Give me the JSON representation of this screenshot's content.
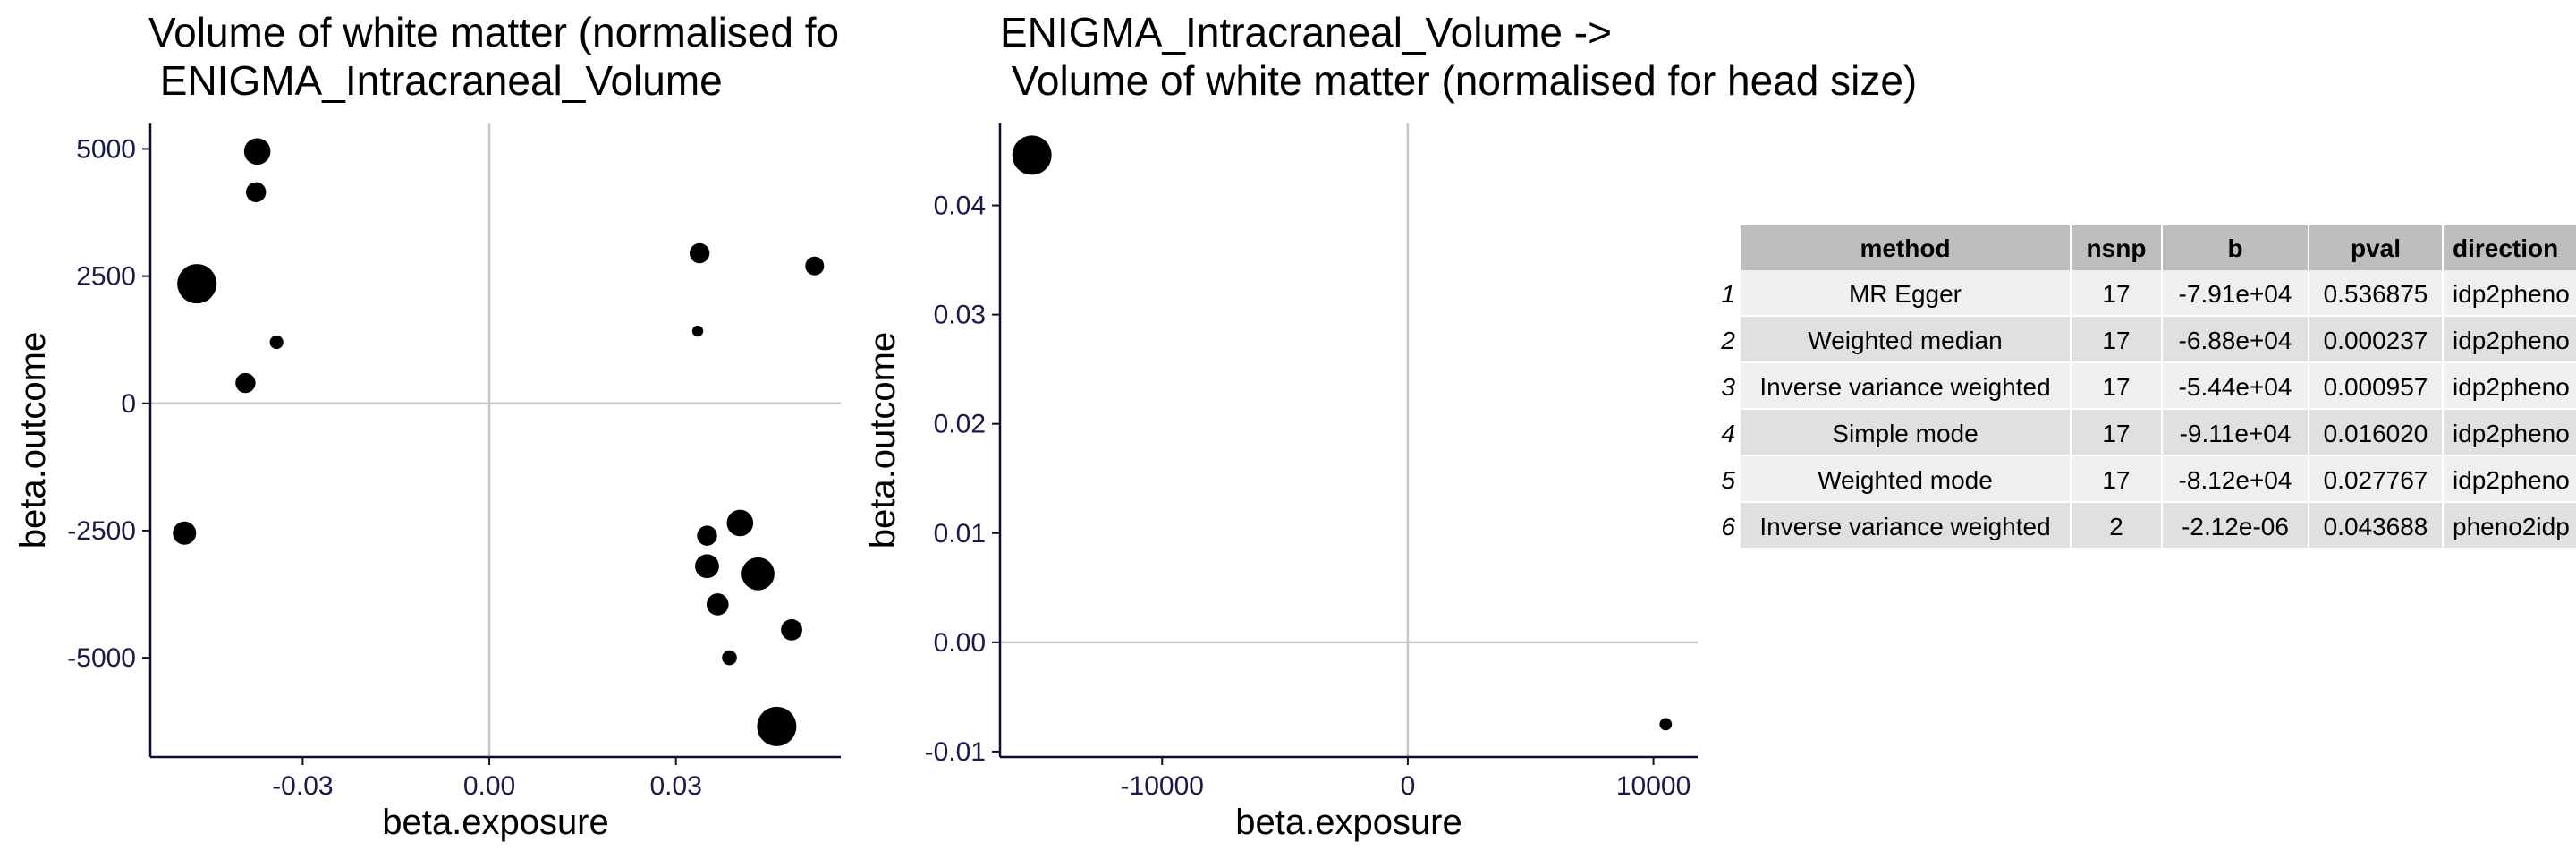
{
  "chart_data": [
    {
      "type": "scatter",
      "title_line1": "Volume of white matter (normalised fo",
      "title_line2": " ENIGMA_Intracraneal_Volume",
      "xlabel": "beta.exposure",
      "ylabel": "beta.outcome",
      "xlim": [
        -0.0545,
        0.0565
      ],
      "ylim": [
        -6950,
        5500
      ],
      "xticks": [
        -0.03,
        0.0,
        0.03
      ],
      "xtick_labels": [
        "-0.03",
        "0.00",
        "0.03"
      ],
      "yticks": [
        -5000,
        -2500,
        0,
        2500,
        5000
      ],
      "ytick_labels": [
        "-5000",
        "-2500",
        "0",
        "2500",
        "5000"
      ],
      "points": [
        {
          "x": -0.0373,
          "y": 4950,
          "size": 3
        },
        {
          "x": -0.0375,
          "y": 4150,
          "size": 2
        },
        {
          "x": -0.047,
          "y": 2350,
          "size": 5
        },
        {
          "x": -0.0342,
          "y": 1200,
          "size": 1
        },
        {
          "x": -0.0392,
          "y": 400,
          "size": 2
        },
        {
          "x": -0.049,
          "y": -2550,
          "size": 2.5
        },
        {
          "x": 0.0338,
          "y": 2950,
          "size": 2
        },
        {
          "x": 0.0523,
          "y": 2700,
          "size": 1.8
        },
        {
          "x": 0.0335,
          "y": 1420,
          "size": 0.6
        },
        {
          "x": 0.035,
          "y": -2600,
          "size": 2
        },
        {
          "x": 0.0403,
          "y": -2350,
          "size": 3
        },
        {
          "x": 0.035,
          "y": -3200,
          "size": 2.6
        },
        {
          "x": 0.0432,
          "y": -3350,
          "size": 4
        },
        {
          "x": 0.0367,
          "y": -3950,
          "size": 2.3
        },
        {
          "x": 0.0486,
          "y": -4450,
          "size": 2.2
        },
        {
          "x": 0.0386,
          "y": -5000,
          "size": 1.2
        },
        {
          "x": 0.0462,
          "y": -6350,
          "size": 5
        }
      ]
    },
    {
      "type": "scatter",
      "title_line1": "ENIGMA_Intracraneal_Volume ->",
      "title_line2": " Volume of white matter (normalised for head size)",
      "xlabel": "beta.exposure",
      "ylabel": "beta.outcome",
      "xlim": [
        -16600,
        11800
      ],
      "ylim": [
        -0.0105,
        0.0475
      ],
      "xticks": [
        -10000,
        0,
        10000
      ],
      "xtick_labels": [
        "-10000",
        "0",
        "10000"
      ],
      "yticks": [
        -0.01,
        0.0,
        0.01,
        0.02,
        0.03,
        0.04
      ],
      "ytick_labels": [
        "-0.01",
        "0.00",
        "0.01",
        "0.02",
        "0.03",
        "0.04"
      ],
      "points": [
        {
          "x": -15300,
          "y": 0.0446,
          "size": 5
        },
        {
          "x": 10500,
          "y": -0.0075,
          "size": 0.8
        }
      ]
    },
    {
      "type": "table",
      "columns": [
        "method",
        "nsnp",
        "b",
        "pval",
        "direction"
      ],
      "rows": [
        {
          "index": "1",
          "method": "MR Egger",
          "nsnp": "17",
          "b": "-7.91e+04",
          "pval": "0.536875",
          "direction": "idp2pheno"
        },
        {
          "index": "2",
          "method": "Weighted median",
          "nsnp": "17",
          "b": "-6.88e+04",
          "pval": "0.000237",
          "direction": "idp2pheno"
        },
        {
          "index": "3",
          "method": "Inverse variance weighted",
          "nsnp": "17",
          "b": "-5.44e+04",
          "pval": "0.000957",
          "direction": "idp2pheno"
        },
        {
          "index": "4",
          "method": "Simple mode",
          "nsnp": "17",
          "b": "-9.11e+04",
          "pval": "0.016020",
          "direction": "idp2pheno"
        },
        {
          "index": "5",
          "method": "Weighted mode",
          "nsnp": "17",
          "b": "-8.12e+04",
          "pval": "0.027767",
          "direction": "idp2pheno"
        },
        {
          "index": "6",
          "method": "Inverse variance weighted",
          "nsnp": "2",
          "b": "-2.12e-06",
          "pval": "0.043688",
          "direction": "pheno2idp"
        }
      ]
    }
  ]
}
